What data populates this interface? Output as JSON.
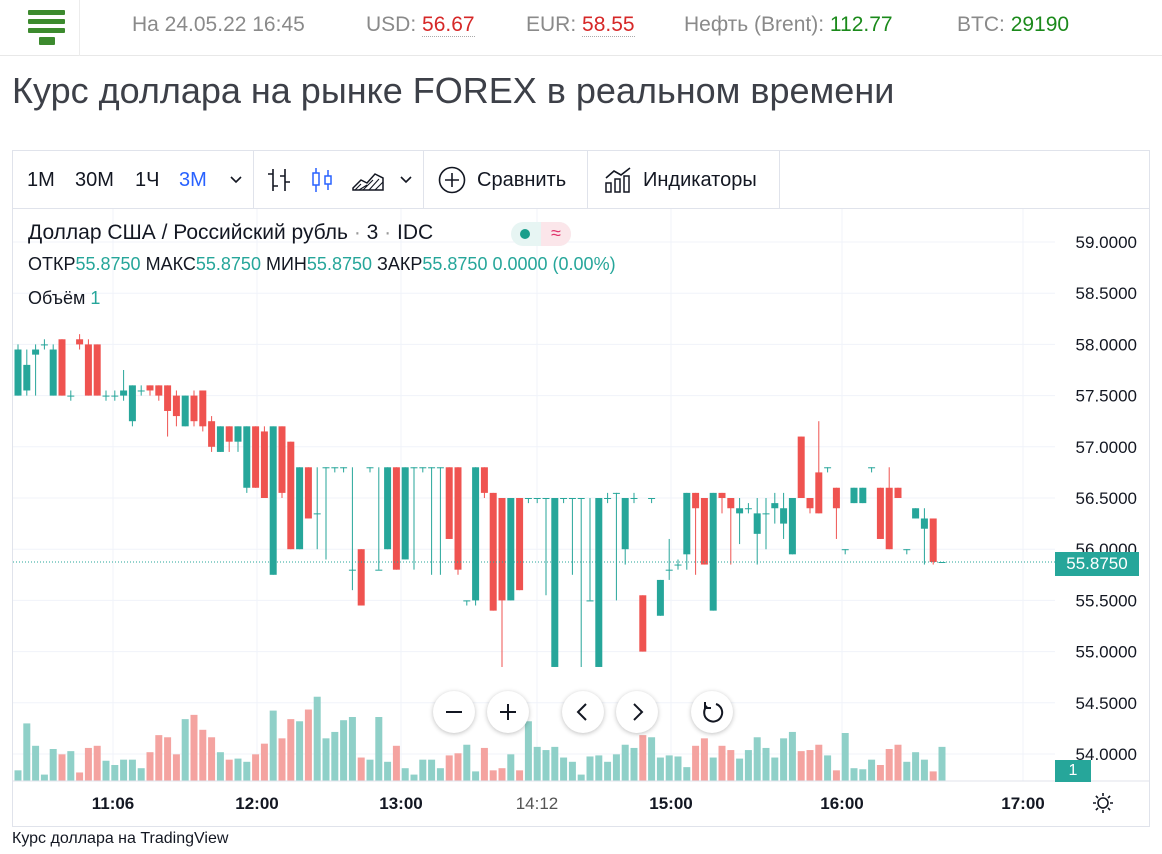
{
  "ticker": {
    "date_label": "На 24.05.22 16:45",
    "usd_label": "USD:",
    "usd_value": "56.67",
    "eur_label": "EUR:",
    "eur_value": "58.55",
    "oil_label": "Нефть (Brent):",
    "oil_value": "112.77",
    "btc_label": "BTC:",
    "btc_value": "29190"
  },
  "page": {
    "title": "Курс доллара на рынке FOREX в реальном времени"
  },
  "toolbar": {
    "intervals": [
      "1М",
      "30М",
      "1Ч",
      "3М"
    ],
    "active_interval": "3М",
    "compare_label": "Сравнить",
    "indicators_label": "Индикаторы"
  },
  "legend": {
    "symbol": "Доллар США / Российский рубль",
    "interval": "3",
    "exchange": "IDC",
    "open_label": "ОТКР",
    "open": "55.8750",
    "high_label": "МАКС",
    "high": "55.8750",
    "low_label": "МИН",
    "low": "55.8750",
    "close_label": "ЗАКР",
    "close": "55.8750",
    "change": "0.0000 (0.00%)",
    "volume_label": "Объём",
    "volume": "1"
  },
  "price_axis": [
    "59.0000",
    "58.5000",
    "58.0000",
    "57.5000",
    "57.0000",
    "56.5000",
    "56.0000",
    "55.5000",
    "55.0000",
    "54.5000",
    "54.0000"
  ],
  "time_axis": [
    "11:06",
    "12:00",
    "13:00",
    "14:12",
    "15:00",
    "16:00",
    "17:00"
  ],
  "current_price": "55.8750",
  "current_volume": "1",
  "colors": {
    "up": "#26a69a",
    "down": "#ef5350",
    "up_volume": "#8fd0c8",
    "down_volume": "#f4a3a0",
    "accent": "#2962ff"
  },
  "footer": {
    "text": "Курс доллара на TradingView"
  },
  "chart_data": {
    "type": "candlestick",
    "ylim": [
      53.8,
      59.2
    ],
    "candles": [
      {
        "o": 57.5,
        "h": 58.0,
        "l": 57.5,
        "c": 57.95
      },
      {
        "o": 57.55,
        "h": 57.95,
        "l": 57.5,
        "c": 57.8
      },
      {
        "o": 57.9,
        "h": 58.0,
        "l": 57.5,
        "c": 57.95
      },
      {
        "o": 58.0,
        "h": 58.05,
        "l": 57.95,
        "c": 58.0
      },
      {
        "o": 57.5,
        "h": 58.0,
        "l": 57.5,
        "c": 57.95
      },
      {
        "o": 58.05,
        "h": 58.05,
        "l": 57.5,
        "c": 57.5
      },
      {
        "o": 57.5,
        "h": 57.55,
        "l": 57.45,
        "c": 57.5
      },
      {
        "o": 58.05,
        "h": 58.1,
        "l": 57.95,
        "c": 58.0
      },
      {
        "o": 58.0,
        "h": 58.05,
        "l": 57.5,
        "c": 57.5
      },
      {
        "o": 58.0,
        "h": 58.0,
        "l": 57.5,
        "c": 57.5
      },
      {
        "o": 57.5,
        "h": 57.55,
        "l": 57.45,
        "c": 57.5
      },
      {
        "o": 57.5,
        "h": 57.55,
        "l": 57.45,
        "c": 57.5
      },
      {
        "o": 57.5,
        "h": 57.75,
        "l": 57.45,
        "c": 57.55
      },
      {
        "o": 57.25,
        "h": 57.6,
        "l": 57.2,
        "c": 57.6
      },
      {
        "o": 57.55,
        "h": 57.6,
        "l": 57.5,
        "c": 57.55
      },
      {
        "o": 57.6,
        "h": 57.6,
        "l": 57.5,
        "c": 57.55
      },
      {
        "o": 57.6,
        "h": 57.6,
        "l": 57.45,
        "c": 57.5
      },
      {
        "o": 57.6,
        "h": 57.6,
        "l": 57.1,
        "c": 57.35
      },
      {
        "o": 57.5,
        "h": 57.55,
        "l": 57.2,
        "c": 57.3
      },
      {
        "o": 57.2,
        "h": 57.5,
        "l": 57.2,
        "c": 57.5
      },
      {
        "o": 57.5,
        "h": 57.55,
        "l": 57.2,
        "c": 57.25
      },
      {
        "o": 57.55,
        "h": 57.55,
        "l": 57.15,
        "c": 57.2
      },
      {
        "o": 57.25,
        "h": 57.3,
        "l": 56.95,
        "c": 57.0
      },
      {
        "o": 56.95,
        "h": 57.2,
        "l": 56.95,
        "c": 57.2
      },
      {
        "o": 57.2,
        "h": 57.2,
        "l": 56.95,
        "c": 57.05
      },
      {
        "o": 57.05,
        "h": 57.2,
        "l": 56.95,
        "c": 57.2
      },
      {
        "o": 56.6,
        "h": 57.2,
        "l": 56.55,
        "c": 57.2
      },
      {
        "o": 57.2,
        "h": 57.2,
        "l": 56.6,
        "c": 56.6
      },
      {
        "o": 57.15,
        "h": 57.2,
        "l": 56.5,
        "c": 56.5
      },
      {
        "o": 55.75,
        "h": 57.2,
        "l": 55.75,
        "c": 57.2
      },
      {
        "o": 57.2,
        "h": 57.2,
        "l": 56.5,
        "c": 56.55
      },
      {
        "o": 57.05,
        "h": 57.05,
        "l": 56.0,
        "c": 56.0
      },
      {
        "o": 56.0,
        "h": 56.8,
        "l": 56.0,
        "c": 56.8
      },
      {
        "o": 56.8,
        "h": 56.8,
        "l": 56.3,
        "c": 56.3
      },
      {
        "o": 56.35,
        "h": 56.8,
        "l": 56.0,
        "c": 56.35
      },
      {
        "o": 56.8,
        "h": 56.8,
        "l": 55.9,
        "c": 56.8
      },
      {
        "o": 56.8,
        "h": 56.8,
        "l": 56.75,
        "c": 56.8
      },
      {
        "o": 56.8,
        "h": 56.8,
        "l": 56.75,
        "c": 56.8
      },
      {
        "o": 55.8,
        "h": 56.8,
        "l": 55.6,
        "c": 55.8
      },
      {
        "o": 56.0,
        "h": 56.0,
        "l": 55.45,
        "c": 55.45
      },
      {
        "o": 56.8,
        "h": 56.8,
        "l": 56.75,
        "c": 56.8
      },
      {
        "o": 55.8,
        "h": 56.8,
        "l": 55.8,
        "c": 55.8
      },
      {
        "o": 56.0,
        "h": 56.8,
        "l": 56.0,
        "c": 56.8
      },
      {
        "o": 56.8,
        "h": 56.8,
        "l": 55.8,
        "c": 55.8
      },
      {
        "o": 55.9,
        "h": 56.8,
        "l": 55.9,
        "c": 56.8
      },
      {
        "o": 56.8,
        "h": 56.8,
        "l": 55.8,
        "c": 56.8
      },
      {
        "o": 56.8,
        "h": 56.8,
        "l": 56.75,
        "c": 56.8
      },
      {
        "o": 56.8,
        "h": 56.8,
        "l": 55.75,
        "c": 56.8
      },
      {
        "o": 56.8,
        "h": 56.8,
        "l": 55.75,
        "c": 56.8
      },
      {
        "o": 56.8,
        "h": 56.8,
        "l": 56.1,
        "c": 56.1
      },
      {
        "o": 56.8,
        "h": 56.8,
        "l": 55.75,
        "c": 55.8
      },
      {
        "o": 55.5,
        "h": 55.5,
        "l": 55.45,
        "c": 55.5
      },
      {
        "o": 55.5,
        "h": 56.8,
        "l": 55.45,
        "c": 56.8
      },
      {
        "o": 56.8,
        "h": 56.8,
        "l": 56.5,
        "c": 56.55
      },
      {
        "o": 56.55,
        "h": 56.55,
        "l": 55.4,
        "c": 55.4
      },
      {
        "o": 56.5,
        "h": 56.5,
        "l": 54.85,
        "c": 55.5
      },
      {
        "o": 55.5,
        "h": 56.5,
        "l": 55.5,
        "c": 56.5
      },
      {
        "o": 56.5,
        "h": 56.5,
        "l": 55.6,
        "c": 55.6
      },
      {
        "o": 56.5,
        "h": 56.5,
        "l": 56.45,
        "c": 56.5
      },
      {
        "o": 56.5,
        "h": 56.5,
        "l": 56.45,
        "c": 56.5
      },
      {
        "o": 56.5,
        "h": 56.5,
        "l": 55.55,
        "c": 56.5
      },
      {
        "o": 54.85,
        "h": 56.5,
        "l": 54.85,
        "c": 56.5
      },
      {
        "o": 56.5,
        "h": 56.5,
        "l": 56.45,
        "c": 56.5
      },
      {
        "o": 56.5,
        "h": 56.5,
        "l": 55.75,
        "c": 56.5
      },
      {
        "o": 56.5,
        "h": 56.5,
        "l": 54.85,
        "c": 56.5
      },
      {
        "o": 55.5,
        "h": 56.5,
        "l": 55.5,
        "c": 55.5
      },
      {
        "o": 54.85,
        "h": 56.5,
        "l": 54.85,
        "c": 56.5
      },
      {
        "o": 56.5,
        "h": 56.55,
        "l": 56.45,
        "c": 56.5
      },
      {
        "o": 56.55,
        "h": 56.55,
        "l": 55.5,
        "c": 56.55
      },
      {
        "o": 56.0,
        "h": 56.5,
        "l": 55.85,
        "c": 56.5
      },
      {
        "o": 56.5,
        "h": 56.55,
        "l": 56.45,
        "c": 56.5
      },
      {
        "o": 55.55,
        "h": 55.55,
        "l": 55.0,
        "c": 55.0
      },
      {
        "o": 56.5,
        "h": 56.5,
        "l": 56.45,
        "c": 56.5
      },
      {
        "o": 55.35,
        "h": 55.7,
        "l": 55.35,
        "c": 55.7
      },
      {
        "o": 55.8,
        "h": 56.1,
        "l": 55.7,
        "c": 55.8
      },
      {
        "o": 55.85,
        "h": 55.9,
        "l": 55.8,
        "c": 55.85
      },
      {
        "o": 55.95,
        "h": 56.55,
        "l": 55.8,
        "c": 56.55
      },
      {
        "o": 56.55,
        "h": 56.55,
        "l": 55.75,
        "c": 56.4
      },
      {
        "o": 56.5,
        "h": 56.5,
        "l": 55.85,
        "c": 55.85
      },
      {
        "o": 55.4,
        "h": 56.55,
        "l": 55.4,
        "c": 56.55
      },
      {
        "o": 56.55,
        "h": 56.55,
        "l": 56.35,
        "c": 56.5
      },
      {
        "o": 56.5,
        "h": 56.5,
        "l": 55.85,
        "c": 56.4
      },
      {
        "o": 56.35,
        "h": 56.5,
        "l": 56.05,
        "c": 56.4
      },
      {
        "o": 56.4,
        "h": 56.45,
        "l": 56.35,
        "c": 56.4
      },
      {
        "o": 56.15,
        "h": 56.5,
        "l": 55.85,
        "c": 56.35
      },
      {
        "o": 56.35,
        "h": 56.5,
        "l": 56.0,
        "c": 56.35
      },
      {
        "o": 56.4,
        "h": 56.55,
        "l": 56.25,
        "c": 56.45
      },
      {
        "o": 56.25,
        "h": 56.55,
        "l": 56.1,
        "c": 56.4
      },
      {
        "o": 55.95,
        "h": 56.5,
        "l": 55.95,
        "c": 56.5
      },
      {
        "o": 57.1,
        "h": 57.1,
        "l": 56.5,
        "c": 56.5
      },
      {
        "o": 56.5,
        "h": 56.5,
        "l": 56.35,
        "c": 56.4
      },
      {
        "o": 56.75,
        "h": 57.25,
        "l": 56.35,
        "c": 56.35
      },
      {
        "o": 56.8,
        "h": 56.8,
        "l": 56.75,
        "c": 56.8
      },
      {
        "o": 56.6,
        "h": 56.6,
        "l": 56.1,
        "c": 56.4
      },
      {
        "o": 56.0,
        "h": 56.0,
        "l": 55.95,
        "c": 56.0
      },
      {
        "o": 56.45,
        "h": 56.6,
        "l": 56.45,
        "c": 56.6
      },
      {
        "o": 56.45,
        "h": 56.6,
        "l": 56.45,
        "c": 56.6
      },
      {
        "o": 56.8,
        "h": 56.8,
        "l": 56.75,
        "c": 56.8
      },
      {
        "o": 56.6,
        "h": 56.6,
        "l": 56.1,
        "c": 56.1
      },
      {
        "o": 56.6,
        "h": 56.8,
        "l": 56.0,
        "c": 56.0
      },
      {
        "o": 56.6,
        "h": 56.6,
        "l": 56.5,
        "c": 56.5
      },
      {
        "o": 56.0,
        "h": 56.0,
        "l": 55.95,
        "c": 56.0
      },
      {
        "o": 56.3,
        "h": 56.4,
        "l": 56.3,
        "c": 56.4
      },
      {
        "o": 56.2,
        "h": 56.4,
        "l": 55.85,
        "c": 56.3
      },
      {
        "o": 56.3,
        "h": 56.3,
        "l": 55.85,
        "c": 55.875
      },
      {
        "o": 55.875,
        "h": 55.875,
        "l": 55.875,
        "c": 55.875
      }
    ],
    "volumes": [
      10,
      54,
      33,
      6,
      30,
      25,
      28,
      8,
      31,
      33,
      19,
      15,
      20,
      20,
      12,
      27,
      43,
      41,
      25,
      58,
      62,
      48,
      41,
      27,
      20,
      21,
      18,
      25,
      35,
      66,
      40,
      58,
      56,
      67,
      79,
      40,
      46,
      57,
      60,
      22,
      20,
      60,
      18,
      33,
      12,
      6,
      20,
      20,
      12,
      24,
      26,
      34,
      9,
      31,
      10,
      12,
      25,
      10,
      56,
      32,
      29,
      32,
      22,
      18,
      6,
      23,
      24,
      18,
      25,
      34,
      31,
      43,
      41,
      22,
      24,
      23,
      13,
      33,
      40,
      22,
      33,
      29,
      21,
      29,
      41,
      31,
      22,
      40,
      46,
      28,
      29,
      34,
      24,
      10,
      45,
      12,
      11,
      20,
      15,
      30,
      34,
      18,
      27,
      20,
      9,
      32,
      37,
      11
    ],
    "volume_ylim": [
      0,
      150
    ]
  }
}
